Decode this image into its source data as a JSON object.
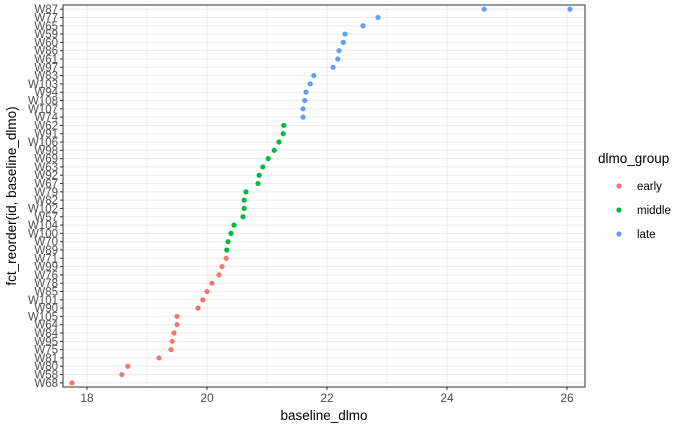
{
  "chart_data": {
    "type": "scatter",
    "xlabel": "baseline_dlmo",
    "ylabel": "fct_reorder(id, baseline_dlmo)",
    "xlim": [
      17.6,
      26.3
    ],
    "x_ticks": [
      18,
      20,
      22,
      24,
      26
    ],
    "grid": true,
    "legend_position": "right",
    "legend": {
      "title": "dlmo_group",
      "items": [
        {
          "label": "early",
          "color": "#F8766D"
        },
        {
          "label": "middle",
          "color": "#00BA38"
        },
        {
          "label": "late",
          "color": "#619CFF"
        }
      ]
    },
    "categories": [
      "W68",
      "W58",
      "W80",
      "W81",
      "W75",
      "W95",
      "W84",
      "W64",
      "W105",
      "W90",
      "W101",
      "W85",
      "W78",
      "W76",
      "W99",
      "W71",
      "W89",
      "W70",
      "W100",
      "W104",
      "W57",
      "W102",
      "W82",
      "W79",
      "W67",
      "W92",
      "W63",
      "W69",
      "W98",
      "W106",
      "W91",
      "W62",
      "W74",
      "W107",
      "W108",
      "W94",
      "W103",
      "W83",
      "W97",
      "W61",
      "W86",
      "W60",
      "W59",
      "W65",
      "W77",
      "W87"
    ],
    "series": [
      {
        "name": "early",
        "color": "#F8766D",
        "points": [
          {
            "id": "W68",
            "x": 17.75
          },
          {
            "id": "W58",
            "x": 18.58
          },
          {
            "id": "W80",
            "x": 18.68
          },
          {
            "id": "W81",
            "x": 19.2
          },
          {
            "id": "W75",
            "x": 19.4
          },
          {
            "id": "W95",
            "x": 19.42
          },
          {
            "id": "W84",
            "x": 19.45
          },
          {
            "id": "W64",
            "x": 19.5
          },
          {
            "id": "W105",
            "x": 19.5
          },
          {
            "id": "W90",
            "x": 19.85
          },
          {
            "id": "W101",
            "x": 19.93
          },
          {
            "id": "W85",
            "x": 20.0
          },
          {
            "id": "W78",
            "x": 20.08
          },
          {
            "id": "W76",
            "x": 20.2
          },
          {
            "id": "W99",
            "x": 20.25
          },
          {
            "id": "W71",
            "x": 20.32
          }
        ]
      },
      {
        "name": "middle",
        "color": "#00BA38",
        "points": [
          {
            "id": "W89",
            "x": 20.33
          },
          {
            "id": "W70",
            "x": 20.35
          },
          {
            "id": "W100",
            "x": 20.4
          },
          {
            "id": "W104",
            "x": 20.45
          },
          {
            "id": "W57",
            "x": 20.6
          },
          {
            "id": "W102",
            "x": 20.62
          },
          {
            "id": "W82",
            "x": 20.62
          },
          {
            "id": "W79",
            "x": 20.65
          },
          {
            "id": "W67",
            "x": 20.85
          },
          {
            "id": "W92",
            "x": 20.87
          },
          {
            "id": "W63",
            "x": 20.93
          },
          {
            "id": "W69",
            "x": 21.02
          },
          {
            "id": "W98",
            "x": 21.12
          },
          {
            "id": "W106",
            "x": 21.2
          },
          {
            "id": "W91",
            "x": 21.27
          },
          {
            "id": "W62",
            "x": 21.28
          }
        ]
      },
      {
        "name": "late",
        "color": "#619CFF",
        "points": [
          {
            "id": "W74",
            "x": 21.6
          },
          {
            "id": "W107",
            "x": 21.6
          },
          {
            "id": "W108",
            "x": 21.63
          },
          {
            "id": "W94",
            "x": 21.65
          },
          {
            "id": "W103",
            "x": 21.72
          },
          {
            "id": "W83",
            "x": 21.78
          },
          {
            "id": "W97",
            "x": 22.1
          },
          {
            "id": "W61",
            "x": 22.18
          },
          {
            "id": "W86",
            "x": 22.2
          },
          {
            "id": "W60",
            "x": 22.27
          },
          {
            "id": "W59",
            "x": 22.3
          },
          {
            "id": "W65",
            "x": 22.6
          },
          {
            "id": "W77",
            "x": 22.85
          },
          {
            "id": "W87_a",
            "label": "W87",
            "x": 24.62
          },
          {
            "id": "W87",
            "x": 26.05
          }
        ]
      }
    ]
  }
}
